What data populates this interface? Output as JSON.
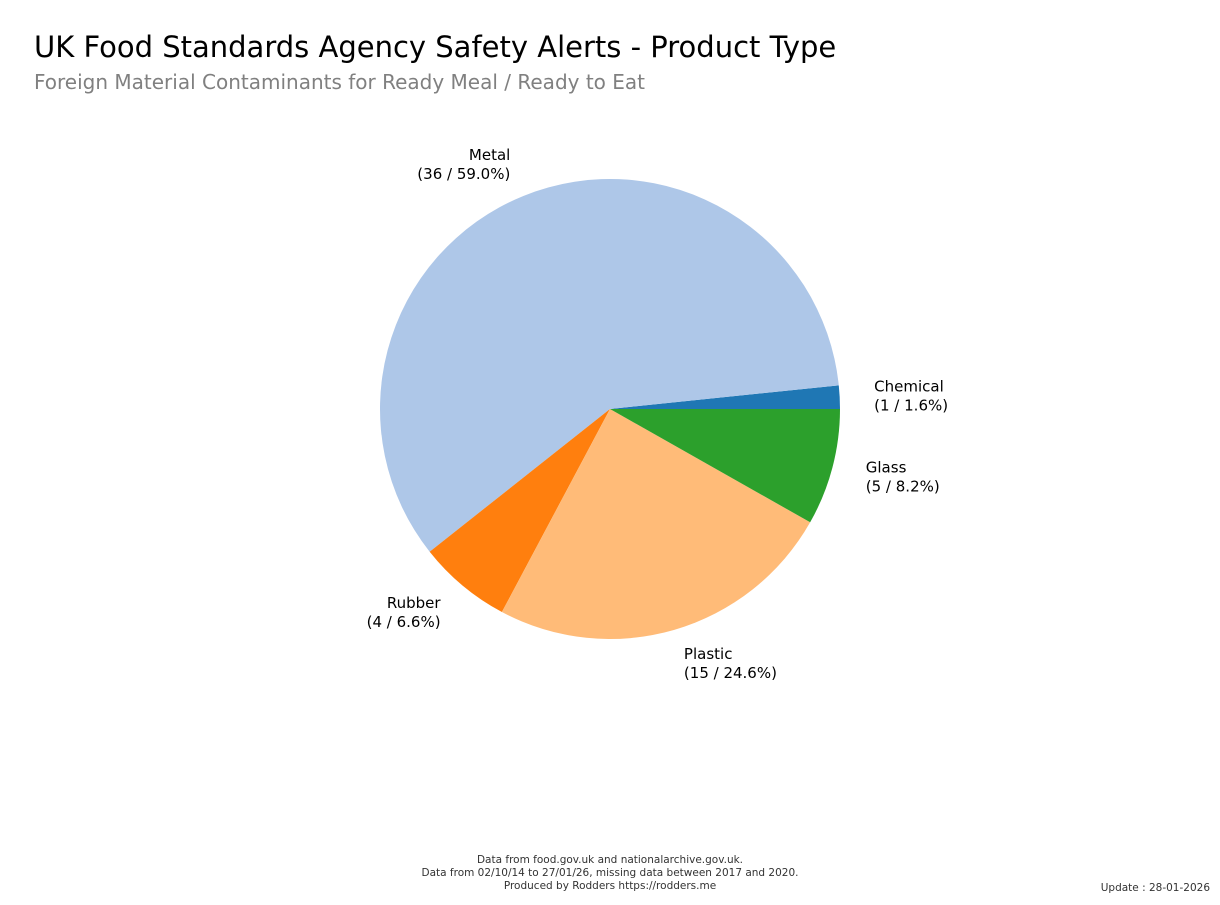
{
  "chart_data": {
    "type": "pie",
    "title": "UK Food Standards Agency Safety Alerts - Product Type",
    "subtitle": "Foreign Material Contaminants for Ready Meal / Ready to Eat",
    "start_angle_deg": 0,
    "direction": "counterclockwise",
    "slices": [
      {
        "label": "Chemical",
        "value": 1,
        "pct": "1.6%",
        "color": "#1f77b4",
        "text": "(1 / 1.6%)"
      },
      {
        "label": "Metal",
        "value": 36,
        "pct": "59.0%",
        "color": "#aec7e8",
        "text": "(36 / 59.0%)"
      },
      {
        "label": "Rubber",
        "value": 4,
        "pct": "6.6%",
        "color": "#ff7f0e",
        "text": "(4 / 6.6%)"
      },
      {
        "label": "Plastic",
        "value": 15,
        "pct": "24.6%",
        "color": "#ffbb78",
        "text": "(15 / 24.6%)"
      },
      {
        "label": "Glass",
        "value": 5,
        "pct": "8.2%",
        "color": "#2ca02c",
        "text": "(5 / 8.2%)"
      }
    ]
  },
  "footer": {
    "line1": "Data from food.gov.uk and nationalarchive.gov.uk.",
    "line2": "Data from 02/10/14 to 27/01/26, missing data between 2017 and 2020.",
    "line3": "Produced by Rodders https://rodders.me",
    "update": "Update : 28-01-2026"
  }
}
